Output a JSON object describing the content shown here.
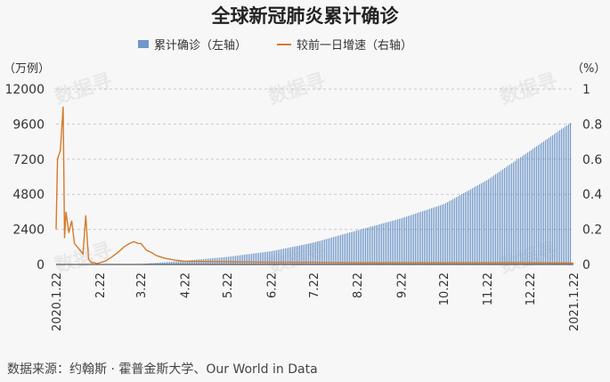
{
  "chart_data": {
    "type": "bar+line",
    "title": "全球新冠肺炎累计确诊",
    "legend": [
      {
        "name": "累计确诊（左轴）",
        "style": "bar",
        "color": "#6f97c9"
      },
      {
        "name": "较前一日增速（右轴）",
        "style": "line",
        "color": "#d57a2c"
      }
    ],
    "left_unit": "（万例）",
    "right_unit": "（%）",
    "left_ticks": [
      "0",
      "2400",
      "4800",
      "7200",
      "9600",
      "12000"
    ],
    "right_ticks": [
      "0",
      "0.2",
      "0.4",
      "0.6",
      "0.8",
      "1"
    ],
    "ylim_left": [
      0,
      12000
    ],
    "ylim_right": [
      0,
      1
    ],
    "x_ticks": [
      "2020.1.22",
      "2.22",
      "3.22",
      "4.22",
      "5.22",
      "6.22",
      "7.22",
      "8.22",
      "9.22",
      "10.22",
      "11.22",
      "12.22",
      "2021.1.22"
    ],
    "series": [
      {
        "name": "累计确诊（左轴）",
        "type": "bar",
        "x": [
          "2020.1.22",
          "2.22",
          "3.22",
          "4.22",
          "5.22",
          "6.22",
          "7.22",
          "8.22",
          "9.22",
          "10.22",
          "11.22",
          "12.22",
          "2021.1.22"
        ],
        "values": [
          0,
          8,
          34,
          263,
          520,
          910,
          1500,
          2340,
          3160,
          4130,
          5800,
          7780,
          9850
        ]
      },
      {
        "name": "较前一日增速（右轴）",
        "type": "line",
        "x": [
          "2020.1.22",
          "2020.1.23",
          "2020.1.25",
          "2020.1.27",
          "2020.1.28",
          "2020.1.29",
          "2020.1.31",
          "2020.2.2",
          "2020.2.4",
          "2020.2.6",
          "2020.2.8",
          "2020.2.10",
          "2020.2.12",
          "2020.2.13",
          "2020.2.14",
          "2020.2.16",
          "2020.2.18",
          "2020.2.20",
          "2020.2.22",
          "2020.2.26",
          "2020.3.1",
          "2020.3.6",
          "2020.3.10",
          "2020.3.14",
          "2020.3.17",
          "2020.3.20",
          "2020.3.22",
          "2020.3.24",
          "2020.3.26",
          "2020.3.29",
          "2020.4.2",
          "2020.4.8",
          "2020.4.15",
          "2020.4.22",
          "2020.5.22",
          "2020.6.22",
          "2020.7.22",
          "2020.8.22",
          "2020.9.22",
          "2020.10.22",
          "2020.11.22",
          "2020.12.22",
          "2021.1.22"
        ],
        "values": [
          0.2,
          0.6,
          0.65,
          0.9,
          0.15,
          0.3,
          0.18,
          0.25,
          0.12,
          0.1,
          0.08,
          0.06,
          0.28,
          0.15,
          0.03,
          0.01,
          0.01,
          0.005,
          0.01,
          0.02,
          0.04,
          0.07,
          0.1,
          0.12,
          0.13,
          0.12,
          0.12,
          0.1,
          0.08,
          0.07,
          0.05,
          0.035,
          0.025,
          0.018,
          0.015,
          0.012,
          0.012,
          0.01,
          0.01,
          0.01,
          0.01,
          0.01,
          0.008
        ]
      }
    ],
    "grid": "horizontal dashed",
    "source": "数据来源：约翰斯 · 霍普金斯大学、Our World in Data"
  },
  "watermark": "数据寻"
}
